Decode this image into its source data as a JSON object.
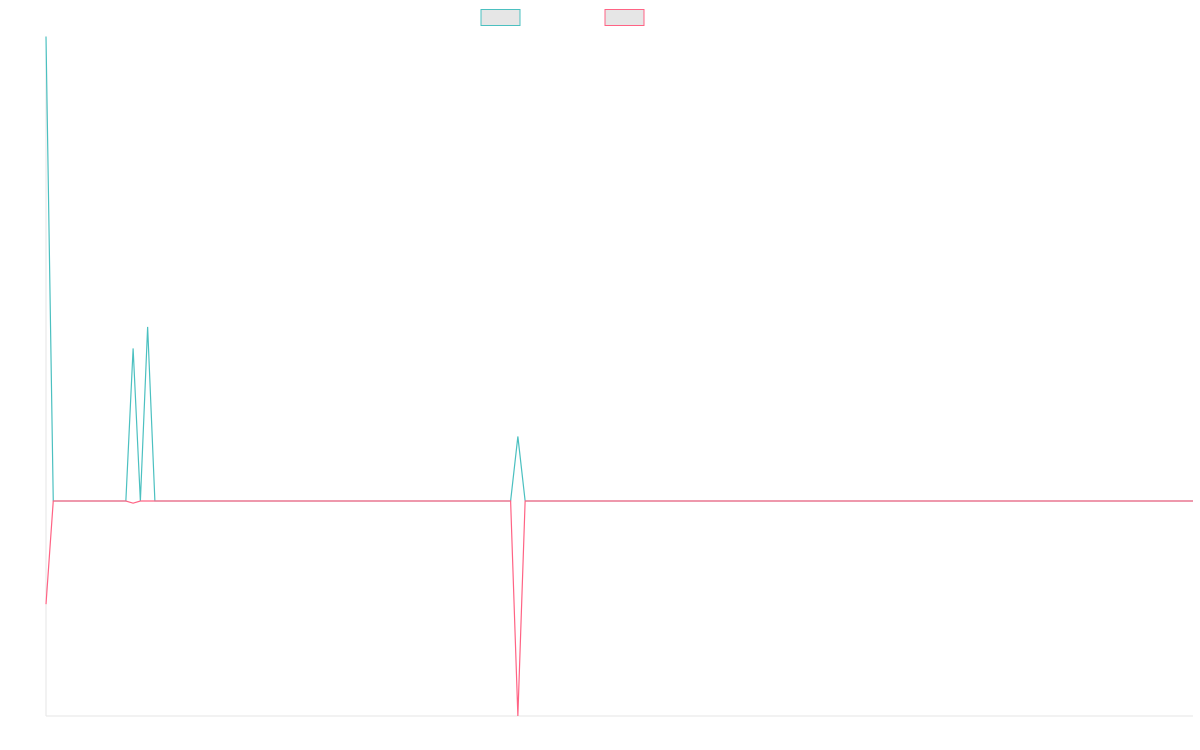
{
  "chart_data": {
    "type": "line",
    "title": "",
    "xlabel": "",
    "ylabel": "",
    "ylim": [
      -1,
      1
    ],
    "xlim": [
      0,
      158
    ],
    "grid": false,
    "legend_position": "top-center",
    "series": [
      {
        "name": "",
        "color": "#4bc0c0",
        "legend_fill": "#e6e6e6",
        "points": [
          [
            0,
            2.16
          ],
          [
            1,
            0
          ],
          [
            11,
            0
          ],
          [
            12,
            0.71
          ],
          [
            13,
            0
          ],
          [
            14,
            0.81
          ],
          [
            15,
            0
          ],
          [
            64,
            0
          ],
          [
            65,
            0.3
          ],
          [
            66,
            0
          ],
          [
            158,
            0
          ]
        ]
      },
      {
        "name": "",
        "color": "#ff6384",
        "legend_fill": "#e6e6e6",
        "points": [
          [
            0,
            -0.48
          ],
          [
            1,
            0
          ],
          [
            11,
            0
          ],
          [
            12,
            -0.01
          ],
          [
            13,
            0
          ],
          [
            15,
            0
          ],
          [
            64,
            0
          ],
          [
            65,
            -1
          ],
          [
            66,
            0
          ],
          [
            158,
            0
          ]
        ]
      }
    ]
  }
}
